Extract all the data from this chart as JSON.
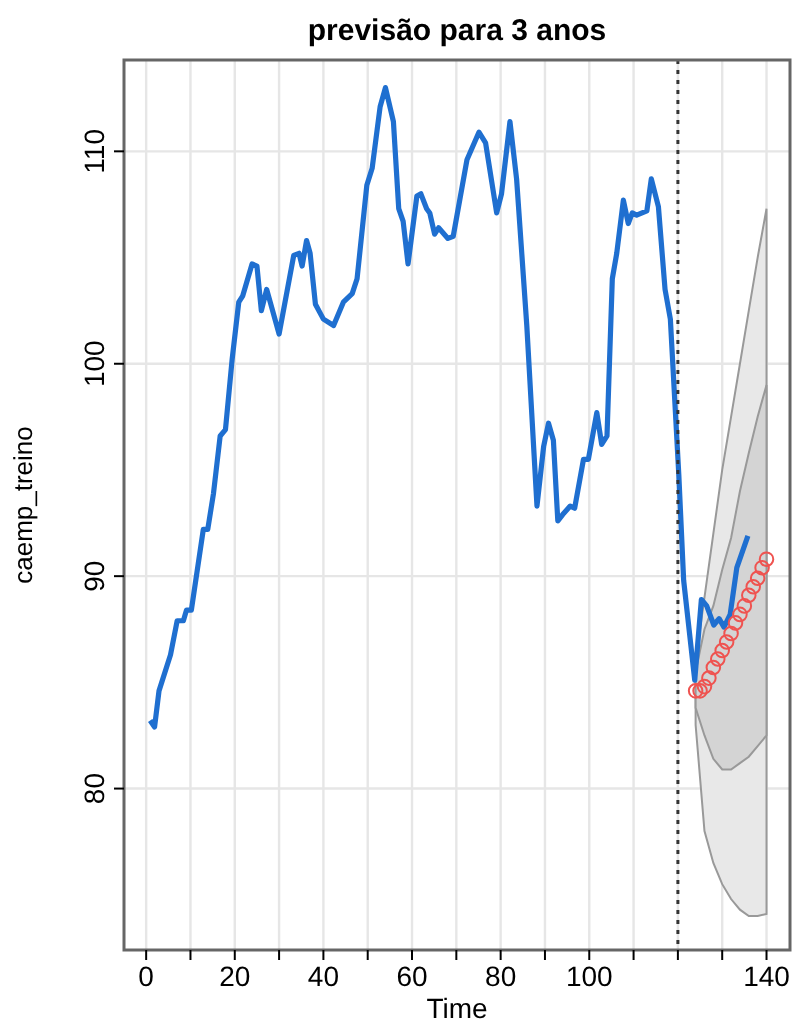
{
  "chart_data": {
    "type": "line",
    "title": "previsão para 3 anos",
    "xlabel": "Time",
    "ylabel": "caemp_treino",
    "xlim": [
      -5,
      145.3
    ],
    "ylim": [
      72.4,
      114.3
    ],
    "xticks": [
      0,
      {
        "value": 10,
        "label": null
      },
      20,
      {
        "value": 30,
        "label": null
      },
      40,
      {
        "value": 50,
        "label": null
      },
      60,
      {
        "value": 70,
        "label": null
      },
      80,
      {
        "value": 90,
        "label": null
      },
      100,
      {
        "value": 110,
        "label": null
      },
      {
        "value": 120,
        "label": null
      },
      {
        "value": 130,
        "label": null
      },
      140
    ],
    "yticks": [
      80,
      90,
      100,
      110
    ],
    "grid": true,
    "ref_lines": [
      {
        "axis": "x",
        "value": 120,
        "color": "#333333",
        "line_style": "dotted"
      }
    ],
    "series": [
      {
        "type": "area",
        "color": "#e8e8e8",
        "x": [
          124,
          126,
          128,
          130,
          132,
          134,
          136,
          138,
          140
        ],
        "values": [
          null,
          null,
          null,
          null,
          null,
          null,
          null,
          null,
          null
        ],
        "lower": [
          83,
          78,
          76.5,
          75.5,
          74.8,
          74.3,
          74,
          74,
          74.1
        ],
        "upper": [
          86,
          89,
          92,
          95,
          97.5,
          100,
          102.5,
          105,
          107.3
        ]
      },
      {
        "type": "area",
        "color": "#d4d4d4",
        "x": [
          124,
          126,
          128,
          130,
          132,
          134,
          136,
          138,
          140
        ],
        "values": [
          null,
          null,
          null,
          null,
          null,
          null,
          null,
          null,
          null
        ],
        "lower": [
          83.8,
          82.5,
          81.4,
          80.9,
          80.9,
          81.2,
          81.5,
          82,
          82.5
        ],
        "upper": [
          85.5,
          87.5,
          88.6,
          90.3,
          91.8,
          94,
          95.8,
          97.5,
          99
        ]
      },
      {
        "color": "#1f6fd0",
        "line_style": "solid",
        "marker": "none",
        "x": [
          0.9,
          1.9,
          2.9,
          5.5,
          7,
          8.4,
          9.1,
          10.2,
          12.9,
          13.9,
          15.2,
          16.7,
          17.9,
          19.4,
          20.9,
          21.8,
          23.9,
          25,
          26,
          27.2,
          30,
          33.3,
          34.5,
          35.2,
          36.2,
          37,
          38.2,
          40,
          42.3,
          44.5,
          46.5,
          47.6,
          49.8,
          51,
          52.8,
          54,
          55.8,
          57,
          58,
          59.1,
          61.1,
          62,
          63.3,
          64,
          65.1,
          66,
          68.1,
          69.3,
          72.4,
          75.1,
          76.6,
          79.1,
          80.2,
          82.1,
          83.6,
          85.9,
          88.2,
          89.7,
          90.8,
          91.9,
          92.9,
          94,
          95.7,
          96.7,
          98.7,
          99.8,
          101.7,
          102.8,
          104,
          105.2,
          106.2,
          107.7,
          108.8,
          109.7,
          110.7,
          113,
          114,
          115.6,
          117.1,
          118.3,
          120.2,
          121.3,
          123.8,
          125.3,
          126.5,
          128.1,
          129.3,
          130.4,
          131.8,
          133.3,
          135.8
        ],
        "values": [
          83.2,
          82.9,
          84.6,
          86.3,
          87.9,
          87.9,
          88.4,
          88.4,
          92.2,
          92.2,
          93.9,
          96.6,
          96.9,
          100.2,
          102.9,
          103.2,
          104.7,
          104.6,
          102.5,
          103.5,
          101.4,
          105.1,
          105.2,
          104.6,
          105.8,
          105.2,
          102.8,
          102.1,
          101.8,
          102.9,
          103.3,
          104,
          108.4,
          109.2,
          112.1,
          113,
          111.4,
          107.3,
          106.7,
          104.7,
          107.9,
          108,
          107.3,
          107.1,
          106.1,
          106.4,
          105.9,
          106,
          109.6,
          110.9,
          110.4,
          107.1,
          108,
          111.4,
          108.7,
          101.8,
          93.3,
          96.1,
          97.2,
          96.4,
          92.6,
          92.9,
          93.3,
          93.2,
          95.5,
          95.5,
          97.7,
          96.2,
          96.6,
          104,
          105.2,
          107.7,
          106.6,
          107.1,
          107,
          107.2,
          108.7,
          107.4,
          103.5,
          102.1,
          94.8,
          89.8,
          85.1,
          88.9,
          88.6,
          87.7,
          88,
          87.6,
          88.2,
          90.4,
          91.9
        ]
      },
      {
        "type": "scatter",
        "color": "#ef5350",
        "marker": "circle",
        "x": [
          124,
          125,
          126,
          127,
          128,
          129,
          130,
          131,
          132,
          133,
          134,
          135,
          136,
          137,
          138,
          139,
          140
        ],
        "values": [
          84.6,
          84.6,
          84.8,
          85.2,
          85.7,
          86.1,
          86.5,
          86.9,
          87.3,
          87.8,
          88.2,
          88.6,
          89.1,
          89.5,
          89.9,
          90.4,
          90.8
        ]
      }
    ]
  }
}
